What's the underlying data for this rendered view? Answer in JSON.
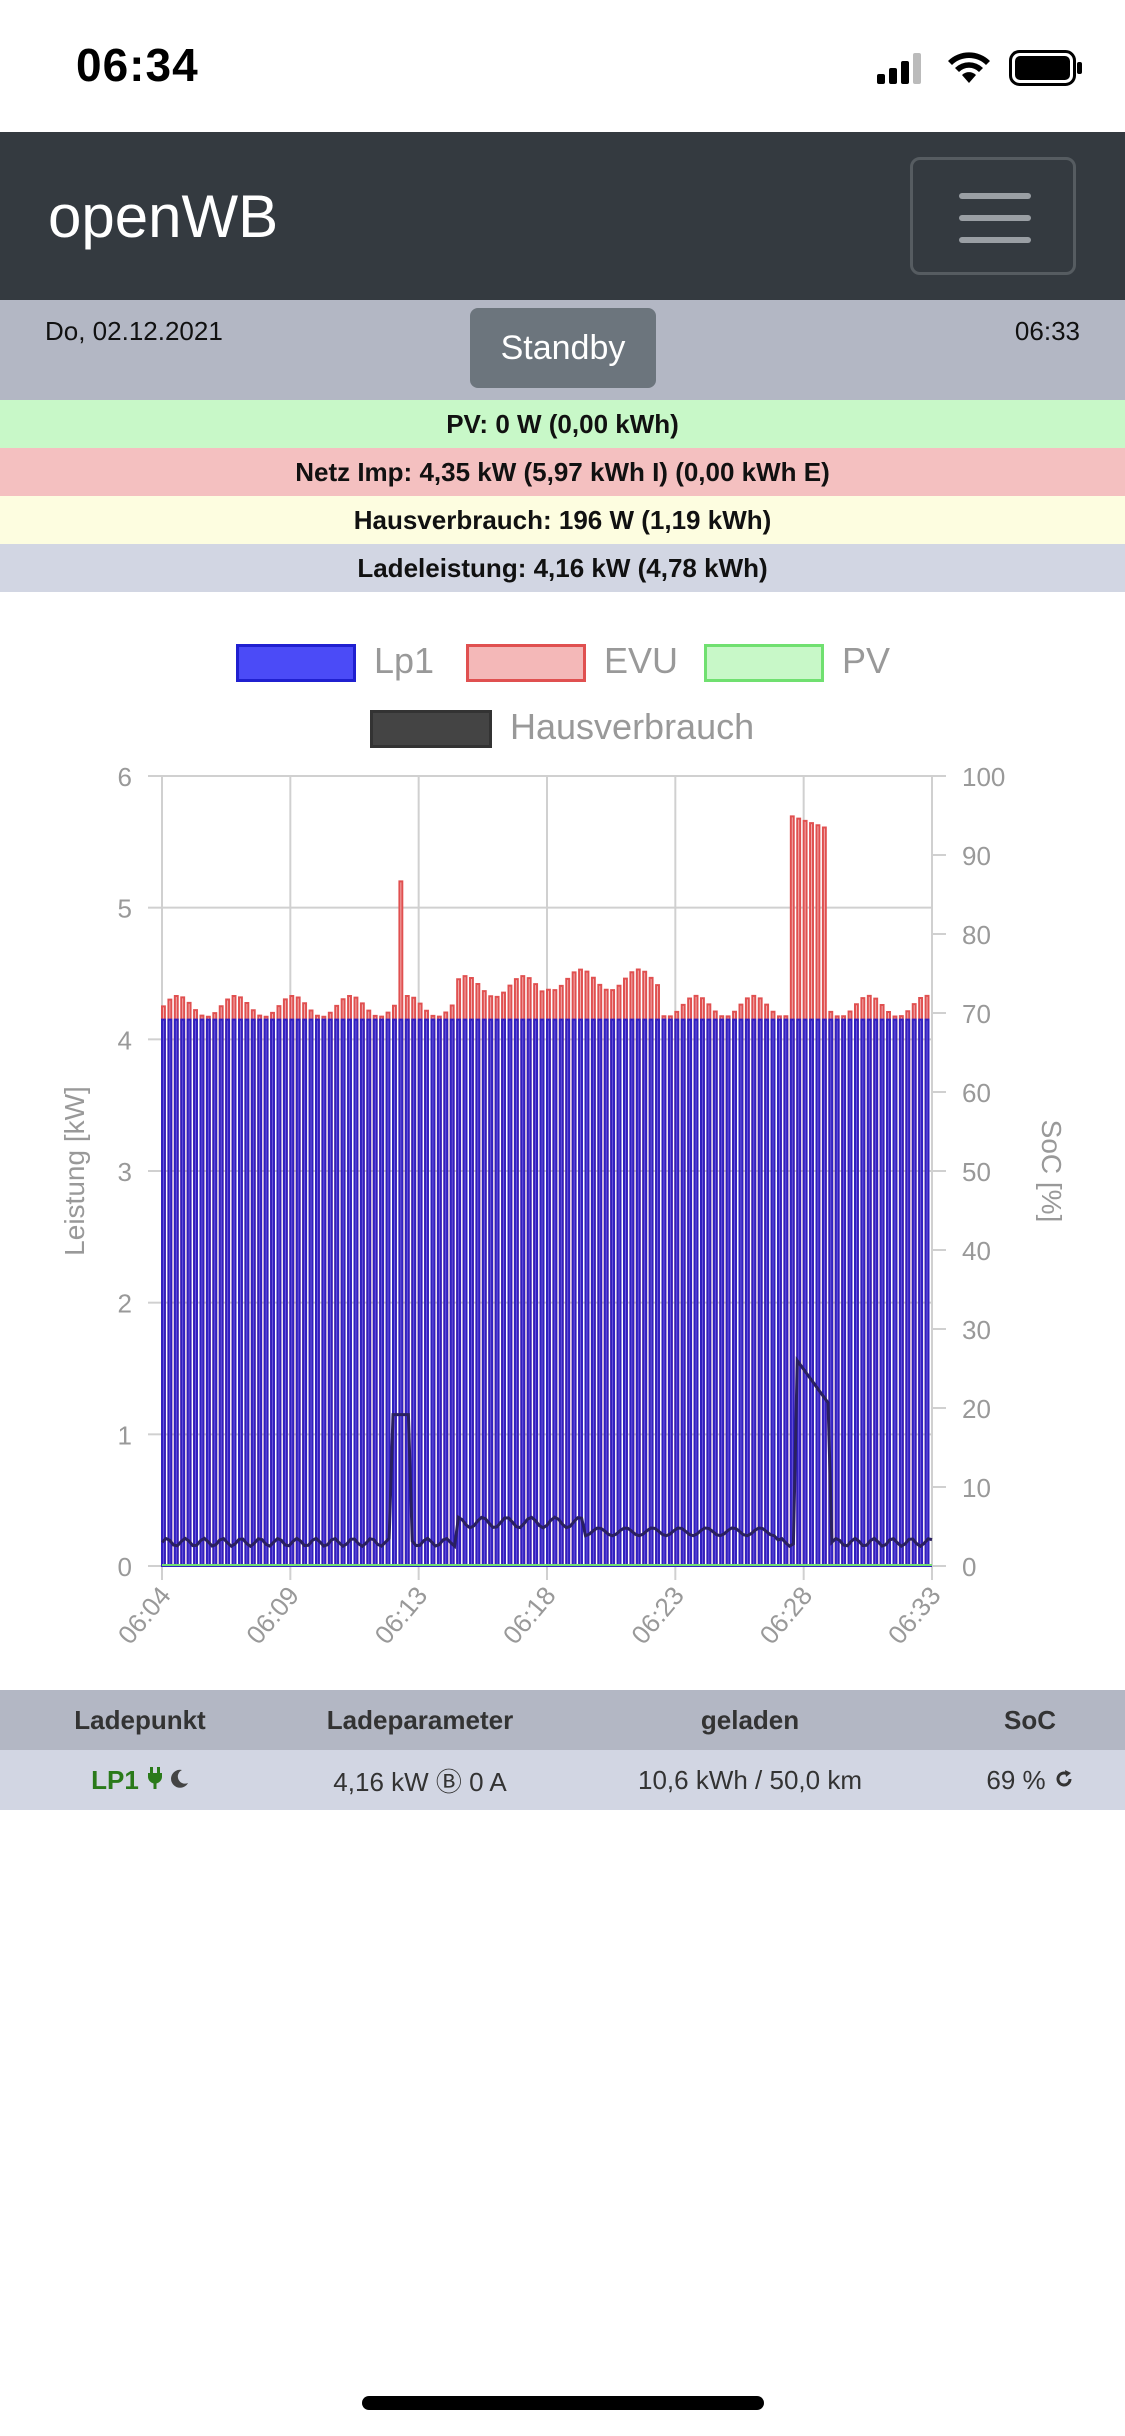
{
  "status_bar": {
    "time": "06:34"
  },
  "navbar": {
    "brand": "openWB"
  },
  "header": {
    "date": "Do, 02.12.2021",
    "status_button": "Standby",
    "time": "06:33"
  },
  "info_rows": [
    {
      "text": "PV: 0 W (0,00 kWh)",
      "color": "#c8f8c8"
    },
    {
      "text": "Netz Imp: 4,35 kW (5,97 kWh I) (0,00 kWh E)",
      "color": "#f4c0c0"
    },
    {
      "text": "Hausverbrauch: 196 W (1,19 kWh)",
      "color": "#fdfde0"
    },
    {
      "text": "Ladeleistung: 4,16 kW (4,78 kWh)",
      "color": "#d2d6e3"
    }
  ],
  "chart_data": {
    "type": "area",
    "legend": [
      {
        "name": "Lp1",
        "fill": "#4b4bf7",
        "border": "#2020d0"
      },
      {
        "name": "EVU",
        "fill": "#f4b8b8",
        "border": "#e05050"
      },
      {
        "name": "PV",
        "fill": "#c8f8c8",
        "border": "#70e070"
      },
      {
        "name": "Hausverbrauch",
        "fill": "#444444",
        "border": "#333333"
      }
    ],
    "ylabel_left": "Leistung [kW]",
    "ylabel_right": "SoC [%]",
    "ylim_left": [
      0,
      6
    ],
    "ylim_right": [
      0,
      100
    ],
    "yticks_left": [
      "0",
      "1",
      "2",
      "3",
      "4",
      "5",
      "6"
    ],
    "yticks_right": [
      "0",
      "10",
      "20",
      "30",
      "40",
      "50",
      "60",
      "70",
      "80",
      "90",
      "100"
    ],
    "xticks": [
      "06:04",
      "06:09",
      "06:13",
      "06:18",
      "06:23",
      "06:28",
      "06:33"
    ],
    "series": [
      {
        "name": "Lp1",
        "description": "pulsed charging between 0 and ~4.1 kW, mostly ~4.15 kW peaks",
        "peak_kw": 4.15
      },
      {
        "name": "EVU",
        "description": "grid import peaks ~4.2–4.5 kW with spikes",
        "peaks": [
          {
            "x": "06:12",
            "kw": 5.2
          },
          {
            "x": "06:28",
            "kw": 5.7
          }
        ]
      },
      {
        "name": "PV",
        "values_kw": 0
      },
      {
        "name": "Hausverbrauch",
        "description": "~0.15–0.35 kW baseline",
        "spikes": [
          {
            "x": "06:12",
            "kw": 1.15
          },
          {
            "x": "06:28",
            "kw": 1.6
          }
        ]
      }
    ]
  },
  "table": {
    "headers": [
      "Ladepunkt",
      "Ladeparameter",
      "geladen",
      "SoC"
    ],
    "row": {
      "ladepunkt": "LP1",
      "ladeparameter": "4,16 kW Ⓑ 0 A",
      "geladen": "10,6 kWh / 50,0 km",
      "soc": "69 %"
    }
  }
}
